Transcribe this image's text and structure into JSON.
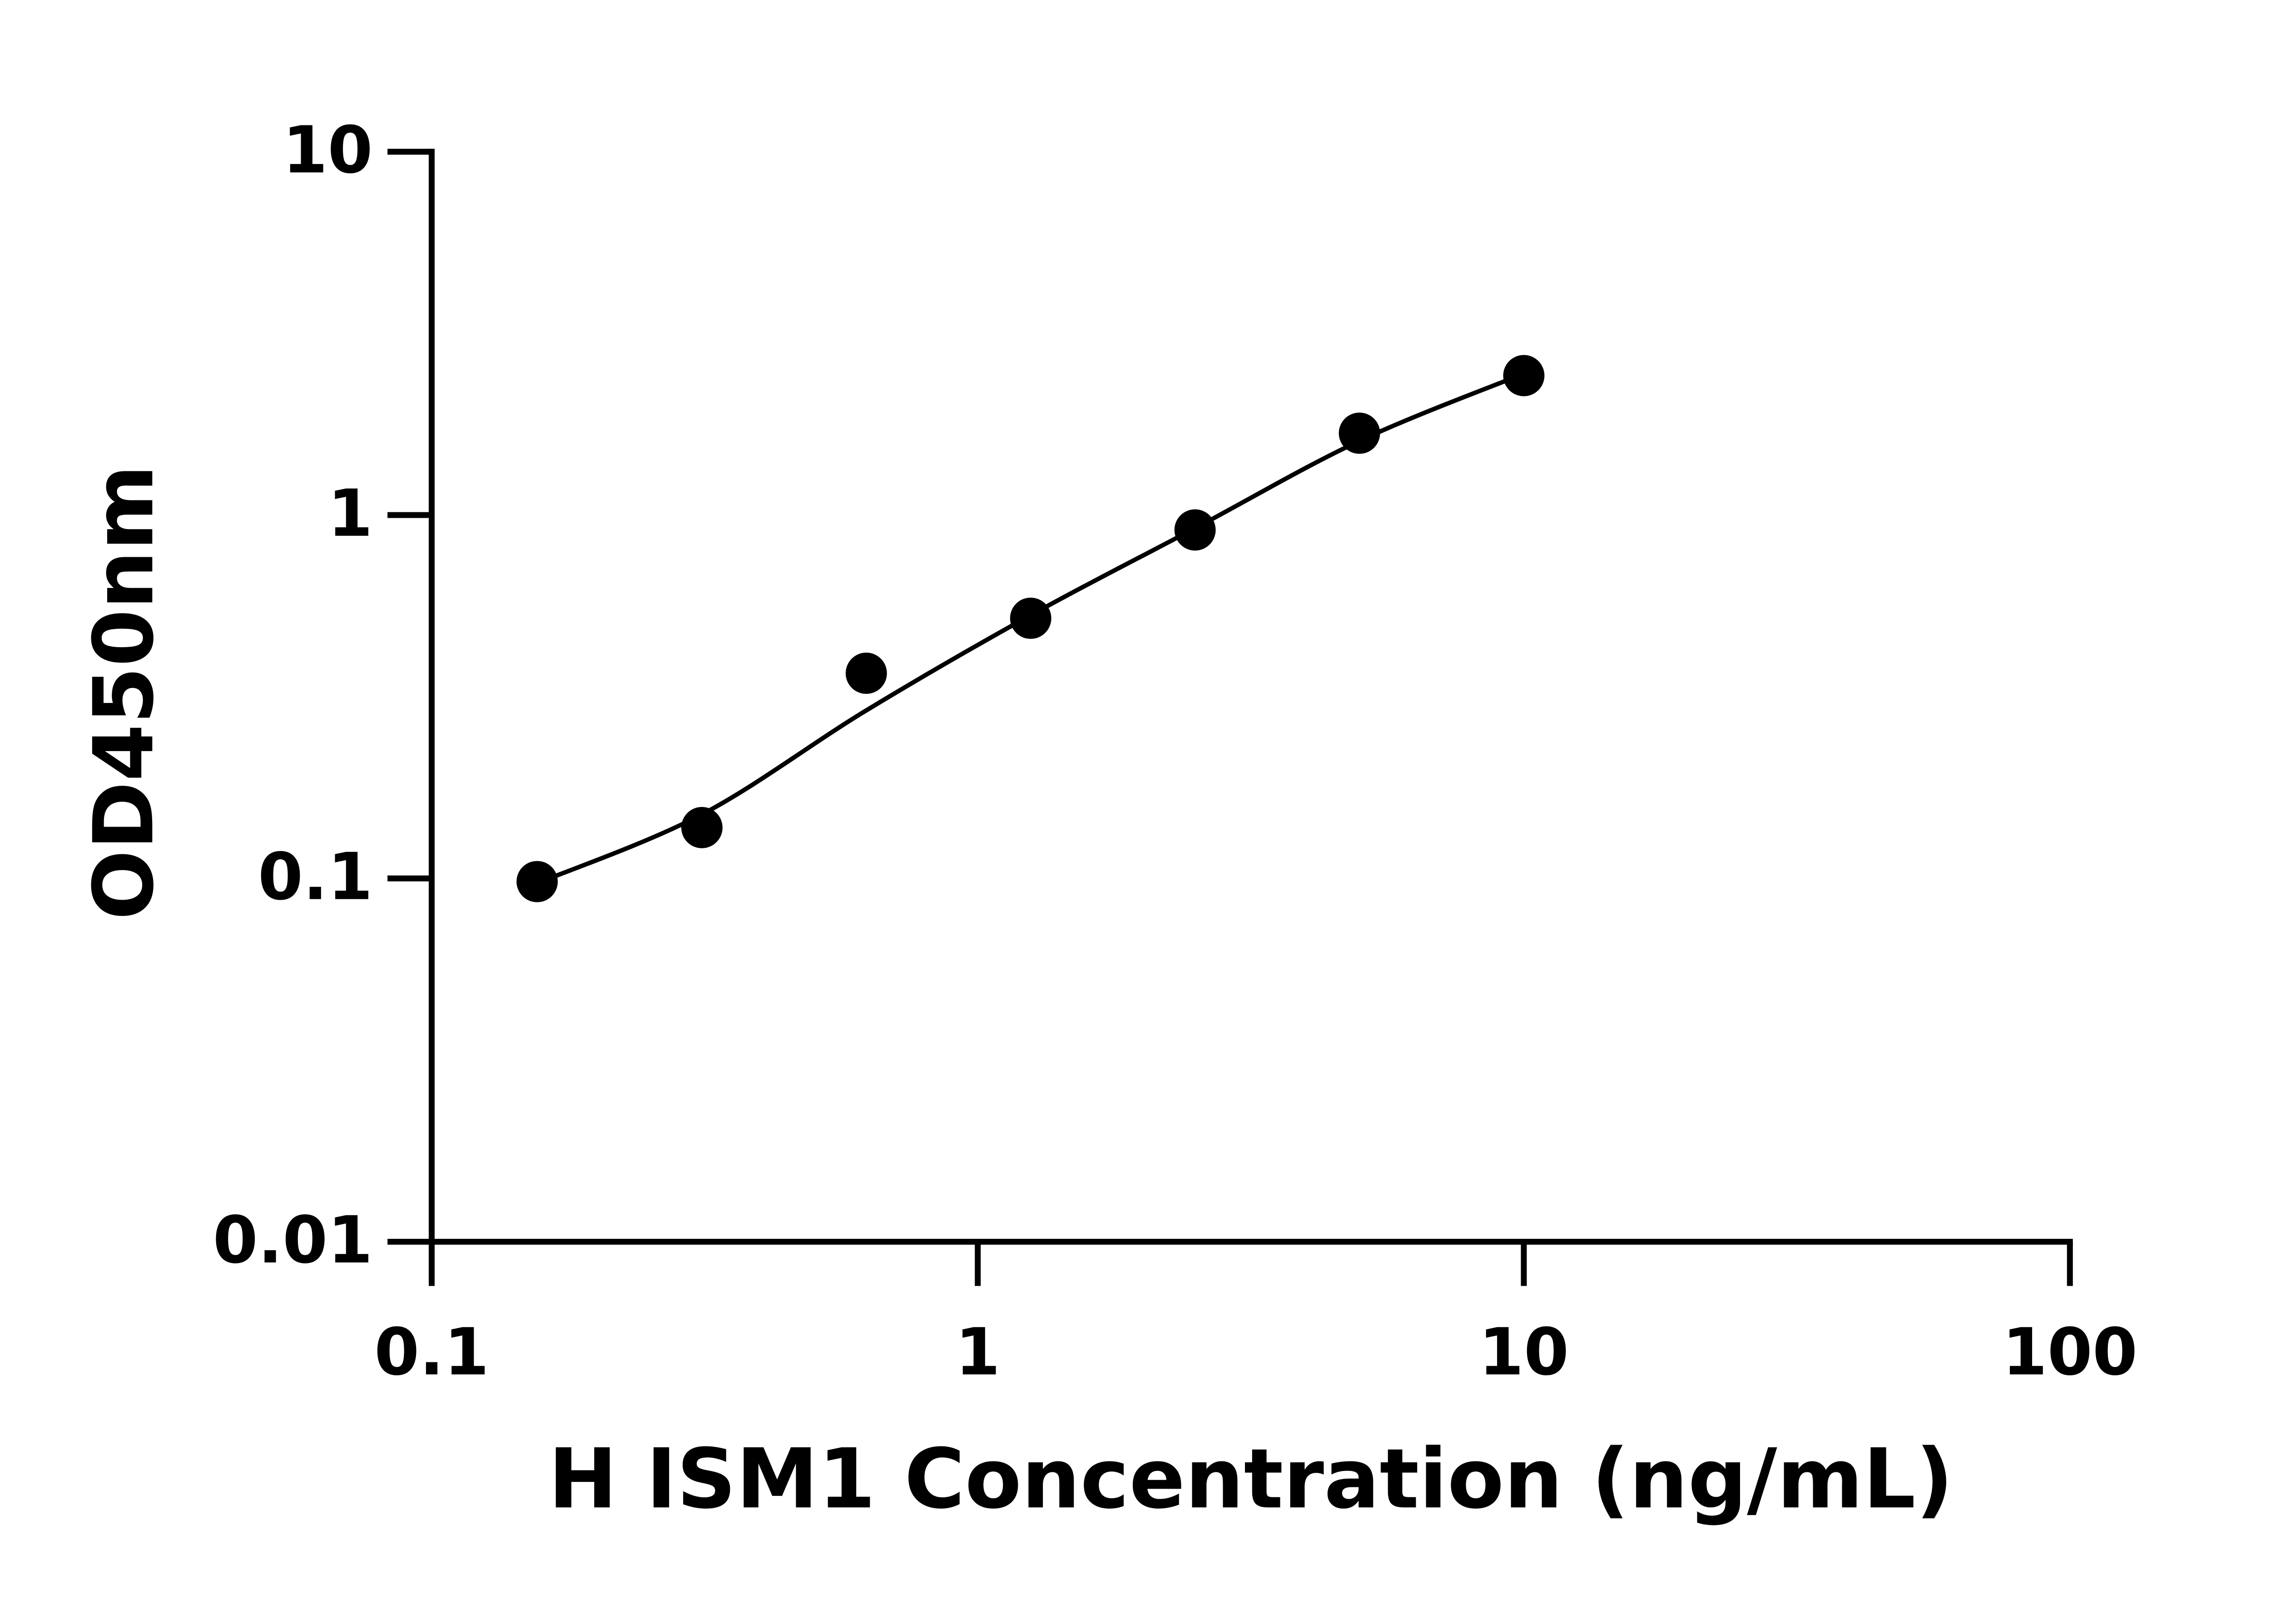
{
  "chart_data": {
    "type": "scatter",
    "x_label": "H ISM1 Concentration (ng/mL)",
    "y_label": "OD450nm",
    "x": [
      0.156,
      0.3125,
      0.625,
      1.25,
      2.5,
      5,
      10
    ],
    "series": [
      {
        "color": "#000000",
        "values": [
          0.098,
          0.138,
          0.367,
          0.52,
          0.91,
          1.68,
          2.42
        ]
      }
    ],
    "fit_curve": {
      "x": [
        0.156,
        0.3125,
        0.625,
        1.25,
        2.5,
        5,
        10
      ],
      "values": [
        0.097,
        0.15,
        0.29,
        0.53,
        0.92,
        1.6,
        2.45
      ]
    },
    "xlim": [
      0.1,
      100
    ],
    "ylim": [
      0.01,
      10
    ],
    "xticks": [
      0.1,
      1,
      10,
      100
    ],
    "yticks": [
      0.01,
      0.1,
      1,
      10
    ],
    "xscale": "log",
    "yscale": "log"
  }
}
